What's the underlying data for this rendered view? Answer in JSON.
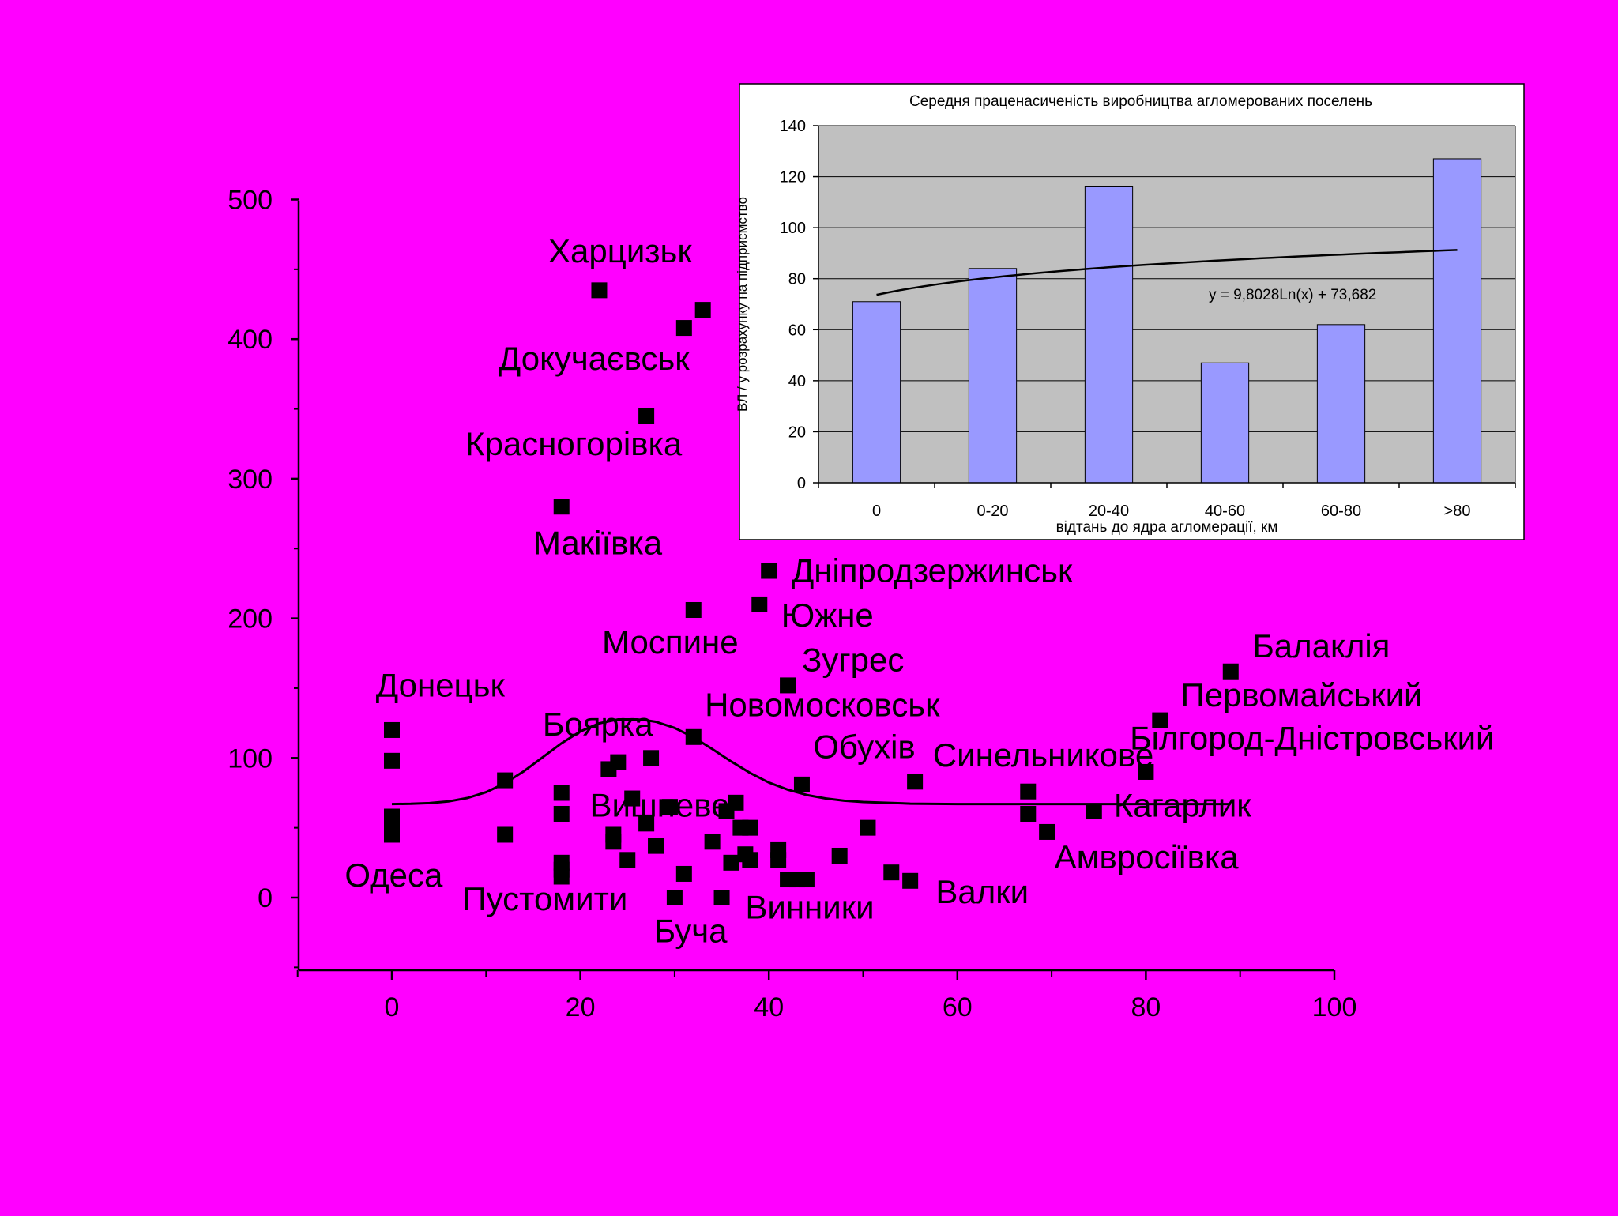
{
  "background_color": "#ff00ff",
  "chart_data": [
    {
      "type": "scatter",
      "title": "",
      "xlabel": "",
      "ylabel": "",
      "xlim": [
        -10,
        100
      ],
      "ylim": [
        -50,
        500
      ],
      "x_ticks": [
        "0",
        "20",
        "40",
        "60",
        "80",
        "100"
      ],
      "y_ticks": [
        "0",
        "100",
        "200",
        "300",
        "400",
        "500"
      ],
      "marker_color": "#000000",
      "points": [
        [
          0,
          120
        ],
        [
          0,
          98
        ],
        [
          0,
          58
        ],
        [
          0,
          52
        ],
        [
          0,
          45
        ],
        [
          12,
          84
        ],
        [
          12,
          45
        ],
        [
          18,
          280
        ],
        [
          18,
          75
        ],
        [
          18,
          60
        ],
        [
          18,
          25
        ],
        [
          18,
          20
        ],
        [
          18,
          15
        ],
        [
          22,
          435
        ],
        [
          23,
          92
        ],
        [
          24,
          97
        ],
        [
          23.5,
          45
        ],
        [
          23.5,
          40
        ],
        [
          25,
          27
        ],
        [
          25.5,
          71
        ],
        [
          27,
          345
        ],
        [
          27.5,
          100
        ],
        [
          27,
          53
        ],
        [
          28,
          37
        ],
        [
          29.5,
          65
        ],
        [
          30,
          0
        ],
        [
          31,
          408
        ],
        [
          31,
          17
        ],
        [
          32,
          206
        ],
        [
          32,
          115
        ],
        [
          33,
          421
        ],
        [
          34,
          40
        ],
        [
          35,
          0
        ],
        [
          35.5,
          62
        ],
        [
          36,
          25
        ],
        [
          36.5,
          68
        ],
        [
          37,
          50
        ],
        [
          37.5,
          31
        ],
        [
          38,
          27
        ],
        [
          38,
          50
        ],
        [
          39,
          210
        ],
        [
          40,
          234
        ],
        [
          41,
          34
        ],
        [
          41,
          27
        ],
        [
          42,
          152
        ],
        [
          42,
          13
        ],
        [
          43,
          13
        ],
        [
          43.5,
          81
        ],
        [
          44,
          13
        ],
        [
          47.5,
          30
        ],
        [
          50.5,
          50
        ],
        [
          53,
          18
        ],
        [
          55,
          12
        ],
        [
          55.5,
          83
        ],
        [
          67.5,
          76
        ],
        [
          67.5,
          60
        ],
        [
          69.5,
          47
        ],
        [
          74.5,
          62
        ],
        [
          80,
          90
        ],
        [
          81.5,
          127
        ],
        [
          89,
          162
        ]
      ],
      "trend": {
        "x": [
          0,
          2,
          4,
          6,
          8,
          10,
          12,
          14,
          16,
          18,
          20,
          22,
          24,
          26,
          27,
          28,
          30,
          32,
          34,
          36,
          38,
          40,
          42,
          44,
          46,
          48,
          50,
          55,
          60,
          70,
          80,
          89
        ],
        "y": [
          67,
          67.2,
          67.7,
          68.9,
          71.3,
          75.5,
          81.9,
          90.5,
          100.5,
          110.5,
          119,
          124.8,
          127.6,
          127.6,
          127,
          125.9,
          121.5,
          114.8,
          106.4,
          97.5,
          89.3,
          82.4,
          77.3,
          73.5,
          71,
          69.4,
          68.5,
          67.3,
          67,
          67,
          67,
          67
        ],
        "color": "#000000"
      },
      "annotations": [
        {
          "text": "Харцизьк",
          "x": 16.6,
          "y": 455
        },
        {
          "text": "Докучаєвськ",
          "x": 11.3,
          "y": 378
        },
        {
          "text": "Красногорівка",
          "x": 7.8,
          "y": 317
        },
        {
          "text": "Макіївка",
          "x": 15,
          "y": 246
        },
        {
          "text": "Дніпродзержинськ",
          "x": 42.4,
          "y": 226
        },
        {
          "text": "Южне",
          "x": 41.3,
          "y": 194
        },
        {
          "text": "Моспине",
          "x": 22.3,
          "y": 175
        },
        {
          "text": "Зугрес",
          "x": 43.5,
          "y": 162
        },
        {
          "text": "Донецьк",
          "x": -1.7,
          "y": 144
        },
        {
          "text": "Новомосковськ",
          "x": 33.2,
          "y": 130
        },
        {
          "text": "Боярка",
          "x": 16,
          "y": 116
        },
        {
          "text": "Обухів",
          "x": 44.7,
          "y": 100
        },
        {
          "text": "Синельникове",
          "x": 57.4,
          "y": 94
        },
        {
          "text": "Балаклія",
          "x": 91.3,
          "y": 172
        },
        {
          "text": "Первомайський",
          "x": 83.7,
          "y": 137
        },
        {
          "text": "Білгород-Дністровський",
          "x": 78.3,
          "y": 106
        },
        {
          "text": "Вишневе",
          "x": 21,
          "y": 58
        },
        {
          "text": "Кагарлик",
          "x": 76.6,
          "y": 58
        },
        {
          "text": "Амвросіївка",
          "x": 70.3,
          "y": 21
        },
        {
          "text": "Одеса",
          "x": -5,
          "y": 8
        },
        {
          "text": "Пустомити",
          "x": 7.5,
          "y": -9
        },
        {
          "text": "Валки",
          "x": 57.7,
          "y": -4
        },
        {
          "text": "Винники",
          "x": 37.5,
          "y": -15
        },
        {
          "text": "Буча",
          "x": 27.8,
          "y": -32
        }
      ]
    },
    {
      "type": "bar",
      "title": "Середня праценасиченість виробництва агломерованих поселень",
      "xlabel": "відтань до ядра агломерації, км",
      "ylabel": "ВЛ / у розрахунку на підприємство",
      "categories": [
        "0",
        "0-20",
        "20-40",
        "40-60",
        "60-80",
        ">80"
      ],
      "values": [
        71,
        84,
        116,
        47,
        62,
        127
      ],
      "ylim": [
        0,
        140
      ],
      "y_ticks": [
        "0",
        "20",
        "40",
        "60",
        "80",
        "100",
        "120",
        "140"
      ],
      "grid": true,
      "bar_color": "#9999ff",
      "plot_bg": "#c0c0c0",
      "trendline_label": "y = 9,8028Ln(x) + 73,682",
      "trendline": {
        "a": 9.8028,
        "b": 73.682
      }
    }
  ]
}
